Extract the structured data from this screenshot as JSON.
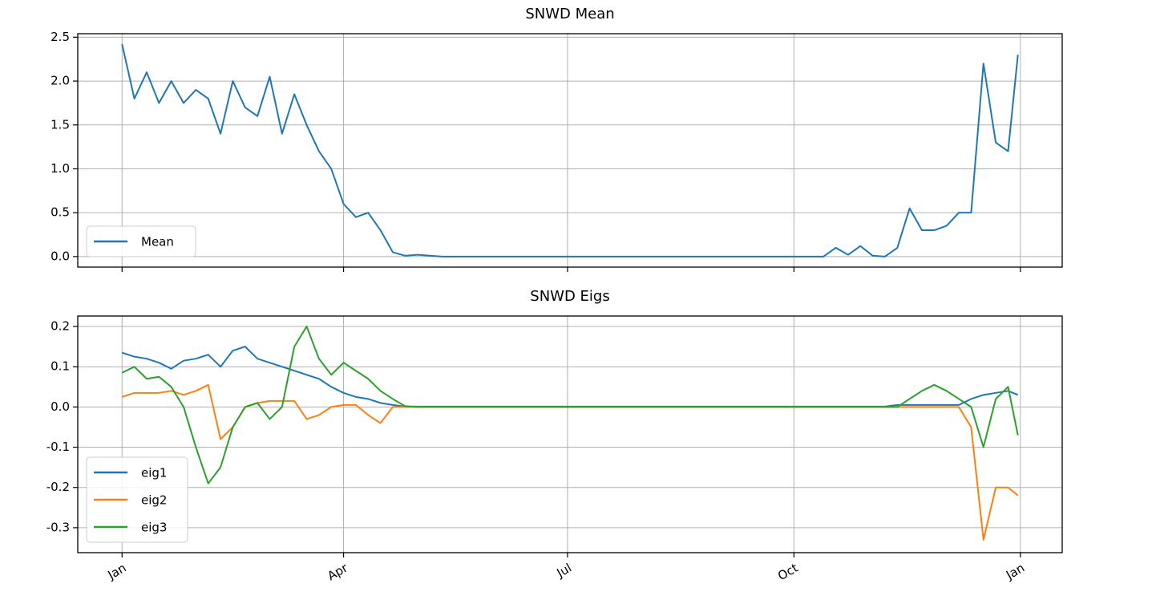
{
  "chart_data": [
    {
      "type": "line",
      "title": "SNWD Mean",
      "x": [
        0,
        5,
        10,
        15,
        20,
        25,
        30,
        35,
        40,
        45,
        50,
        55,
        60,
        65,
        70,
        75,
        80,
        85,
        90,
        95,
        100,
        105,
        110,
        115,
        120,
        125,
        130,
        135,
        140,
        145,
        150,
        155,
        160,
        165,
        170,
        175,
        180,
        185,
        190,
        195,
        200,
        205,
        210,
        215,
        220,
        225,
        230,
        235,
        240,
        245,
        250,
        255,
        260,
        265,
        270,
        275,
        280,
        285,
        290,
        295,
        300,
        305,
        310,
        315,
        320,
        325,
        330,
        335,
        340,
        345,
        350,
        355,
        360,
        364
      ],
      "series": [
        {
          "name": "Mean",
          "color": "#1f77b4",
          "values": [
            2.42,
            1.8,
            2.1,
            1.75,
            2.0,
            1.75,
            1.9,
            1.8,
            1.4,
            2.0,
            1.7,
            1.6,
            2.05,
            1.4,
            1.85,
            1.5,
            1.2,
            1.0,
            0.6,
            0.45,
            0.5,
            0.3,
            0.05,
            0.01,
            0.02,
            0.01,
            0,
            0,
            0,
            0,
            0,
            0,
            0,
            0,
            0,
            0,
            0,
            0,
            0,
            0,
            0,
            0,
            0,
            0,
            0,
            0,
            0,
            0,
            0,
            0,
            0,
            0,
            0,
            0,
            0,
            0,
            0,
            0,
            0.1,
            0.02,
            0.12,
            0.01,
            0,
            0.1,
            0.55,
            0.3,
            0.3,
            0.35,
            0.5,
            0.5,
            2.2,
            1.3,
            1.2,
            2.3
          ]
        }
      ],
      "xlim": [
        -18,
        382
      ],
      "xticks": [
        0,
        90,
        181,
        273,
        365
      ],
      "ylim": [
        -0.12,
        2.54
      ],
      "yticks": [
        {
          "value": 0,
          "label": "0.0"
        },
        0.5,
        {
          "value": 1,
          "label": "1.0"
        },
        1.5,
        {
          "value": 2,
          "label": "2.0"
        },
        2.5
      ],
      "grid": true,
      "legend": "lower left"
    },
    {
      "type": "line",
      "title": "SNWD Eigs",
      "x": [
        0,
        5,
        10,
        15,
        20,
        25,
        30,
        35,
        40,
        45,
        50,
        55,
        60,
        65,
        70,
        75,
        80,
        85,
        90,
        95,
        100,
        105,
        110,
        115,
        120,
        125,
        130,
        135,
        140,
        145,
        150,
        155,
        160,
        165,
        170,
        175,
        180,
        185,
        190,
        195,
        200,
        205,
        210,
        215,
        220,
        225,
        230,
        235,
        240,
        245,
        250,
        255,
        260,
        265,
        270,
        275,
        280,
        285,
        290,
        295,
        300,
        305,
        310,
        315,
        320,
        325,
        330,
        335,
        340,
        345,
        350,
        355,
        360,
        364
      ],
      "series": [
        {
          "name": "eig1",
          "color": "#1f77b4",
          "values": [
            0.135,
            0.125,
            0.12,
            0.11,
            0.095,
            0.115,
            0.12,
            0.13,
            0.1,
            0.14,
            0.15,
            0.12,
            0.11,
            0.1,
            0.09,
            0.08,
            0.07,
            0.05,
            0.035,
            0.025,
            0.02,
            0.01,
            0.005,
            0.001,
            0.001,
            0.001,
            0.001,
            0.001,
            0.001,
            0.001,
            0.001,
            0.001,
            0.001,
            0.001,
            0.001,
            0.001,
            0.001,
            0.001,
            0.001,
            0.001,
            0.001,
            0.001,
            0.001,
            0.001,
            0.001,
            0.001,
            0.001,
            0.001,
            0.001,
            0.001,
            0.001,
            0.001,
            0.001,
            0.001,
            0.001,
            0.001,
            0.001,
            0.001,
            0.001,
            0.001,
            0.001,
            0.001,
            0.001,
            0.005,
            0.005,
            0.005,
            0.005,
            0.005,
            0.005,
            0.02,
            0.03,
            0.035,
            0.04,
            0.03
          ]
        },
        {
          "name": "eig2",
          "color": "#ff7f0e",
          "values": [
            0.025,
            0.035,
            0.035,
            0.035,
            0.04,
            0.03,
            0.04,
            0.055,
            -0.08,
            -0.05,
            0.0,
            0.01,
            0.015,
            0.015,
            0.015,
            -0.03,
            -0.02,
            0.0,
            0.005,
            0.005,
            -0.02,
            -0.04,
            0.0,
            0,
            0,
            0,
            0,
            0,
            0,
            0,
            0,
            0,
            0,
            0,
            0,
            0,
            0,
            0,
            0,
            0,
            0,
            0,
            0,
            0,
            0,
            0,
            0,
            0,
            0,
            0,
            0,
            0,
            0,
            0,
            0,
            0,
            0,
            0,
            0,
            0,
            0,
            0,
            0,
            0,
            0,
            0,
            0,
            0,
            0,
            -0.05,
            -0.33,
            -0.2,
            -0.2,
            -0.22
          ]
        },
        {
          "name": "eig3",
          "color": "#2ca02c",
          "values": [
            0.085,
            0.1,
            0.07,
            0.075,
            0.05,
            0.0,
            -0.1,
            -0.19,
            -0.15,
            -0.05,
            0.0,
            0.01,
            -0.03,
            0.0,
            0.15,
            0.2,
            0.12,
            0.08,
            0.11,
            0.09,
            0.07,
            0.04,
            0.02,
            0.002,
            0,
            0,
            0,
            0,
            0,
            0,
            0,
            0,
            0,
            0,
            0,
            0,
            0,
            0,
            0,
            0,
            0,
            0,
            0,
            0,
            0,
            0,
            0,
            0,
            0,
            0,
            0,
            0,
            0,
            0,
            0,
            0,
            0,
            0,
            0,
            0,
            0,
            0,
            0,
            0,
            0.02,
            0.04,
            0.055,
            0.04,
            0.02,
            0.0,
            -0.1,
            0.02,
            0.05,
            -0.07
          ]
        }
      ],
      "xlim": [
        -18,
        382
      ],
      "xticks": [
        {
          "value": 0,
          "label": "Jan"
        },
        {
          "value": 90,
          "label": "Apr"
        },
        {
          "value": 181,
          "label": "Jul"
        },
        {
          "value": 273,
          "label": "Oct"
        },
        {
          "value": 365,
          "label": "Jan"
        }
      ],
      "ylim": [
        -0.362,
        0.226
      ],
      "yticks": [
        -0.3,
        -0.2,
        -0.1,
        {
          "value": 0,
          "label": "0.0"
        },
        0.1,
        0.2
      ],
      "grid": true,
      "legend": "lower left"
    }
  ]
}
